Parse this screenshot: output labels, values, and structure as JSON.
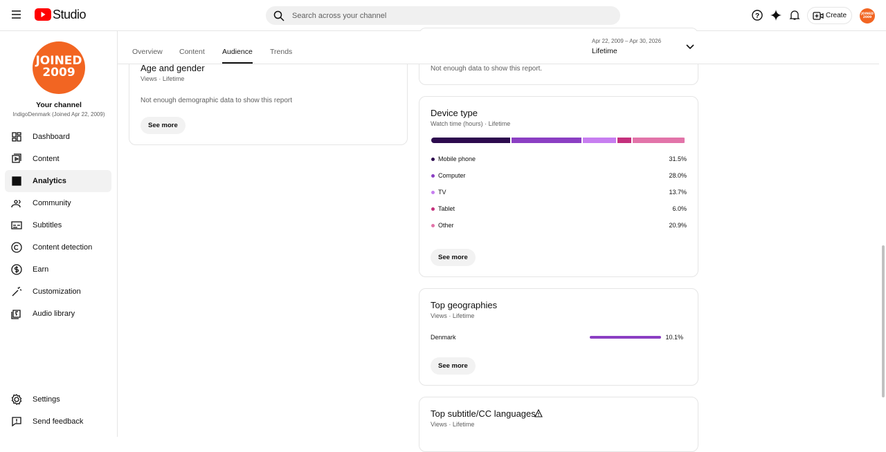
{
  "header": {
    "logo": "Studio",
    "search_placeholder": "Search across your channel",
    "create": "Create",
    "avatar": [
      "JOINED",
      "2009"
    ]
  },
  "sidebar": {
    "avatar": [
      "JOINED",
      "2009"
    ],
    "channel_title": "Your channel",
    "channel_name": "IndigoDenmark (Joined Apr 22, 2009)",
    "nav": [
      "Dashboard",
      "Content",
      "Analytics",
      "Community",
      "Subtitles",
      "Content detection",
      "Earn",
      "Customization",
      "Audio library"
    ],
    "active_nav": 2,
    "footer": [
      "Settings",
      "Send feedback"
    ]
  },
  "tabs": [
    "Overview",
    "Content",
    "Audience",
    "Trends"
  ],
  "active_tab": 2,
  "date_range": {
    "range": "Apr 22, 2009 – Apr 30, 2026",
    "period": "Lifetime"
  },
  "age_gender": {
    "title": "Age and gender",
    "subtitle": "Views · Lifetime",
    "message": "Not enough demographic data to show this report",
    "button": "See more"
  },
  "previous_card": {
    "message": "Not enough data to show this report."
  },
  "device_type": {
    "title": "Device type",
    "subtitle": "Watch time (hours) · Lifetime",
    "button": "See more",
    "items": [
      {
        "name": "Mobile phone",
        "color": "#2d0b4e",
        "value": 31.5,
        "label": "31.5%"
      },
      {
        "name": "Computer",
        "color": "#8b3fc3",
        "value": 28.0,
        "label": "28.0%"
      },
      {
        "name": "TV",
        "color": "#c77ef0",
        "value": 13.7,
        "label": "13.7%"
      },
      {
        "name": "Tablet",
        "color": "#c4307c",
        "value": 6.0,
        "label": "6.0%"
      },
      {
        "name": "Other",
        "color": "#e274a9",
        "value": 20.9,
        "label": "20.9%"
      }
    ]
  },
  "geographies": {
    "title": "Top geographies",
    "subtitle": "Views · Lifetime",
    "button": "See more",
    "color": "#8b3fc3",
    "items": [
      {
        "name": "Denmark",
        "value": 10.1,
        "label": "10.1%"
      }
    ]
  },
  "subtitle_languages": {
    "title": "Top subtitle/CC languages",
    "subtitle": "Views · Lifetime"
  }
}
